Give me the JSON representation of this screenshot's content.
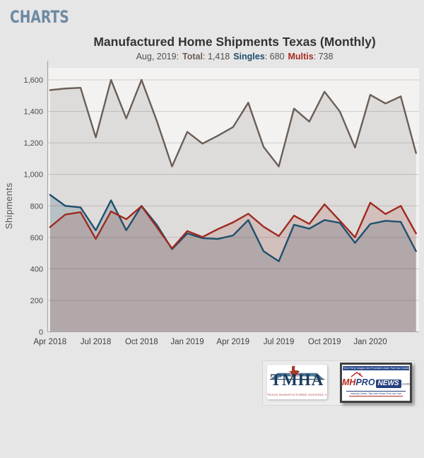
{
  "header": {
    "title": "CHARTS"
  },
  "subtitle": {
    "prefix": "Aug, 2019:",
    "separator": ": ",
    "items": [
      {
        "label": "Total",
        "value": "1,418",
        "color": "#6b5e56"
      },
      {
        "label": "Singles",
        "value": "680",
        "color": "#1c4e70"
      },
      {
        "label": "Multis",
        "value": "738",
        "color": "#a62b1f"
      }
    ]
  },
  "chart_data": {
    "type": "line",
    "title": "Manufactured Home Shipments Texas (Monthly)",
    "ylabel": "Shipments",
    "xlabel": "",
    "ylim": [
      0,
      1600
    ],
    "ytick_step": 200,
    "grid": true,
    "legend_position": "none",
    "plot_bg": "#f3f2f1",
    "x_tick_labels": [
      "Apr 2018",
      "Jul 2018",
      "Oct 2018",
      "Jan 2019",
      "Apr 2019",
      "Jul 2019",
      "Oct 2019",
      "Jan 2020"
    ],
    "x_tick_indices": [
      0,
      3,
      6,
      9,
      12,
      15,
      18,
      21
    ],
    "x": [
      "Apr 2018",
      "May 2018",
      "Jun 2018",
      "Jul 2018",
      "Aug 2018",
      "Sep 2018",
      "Oct 2018",
      "Nov 2018",
      "Dec 2018",
      "Jan 2019",
      "Feb 2019",
      "Mar 2019",
      "Apr 2019",
      "May 2019",
      "Jun 2019",
      "Jul 2019",
      "Aug 2019",
      "Sep 2019",
      "Oct 2019",
      "Nov 2019",
      "Dec 2019",
      "Jan 2020",
      "Feb 2020",
      "Mar 2020",
      "Apr 2020"
    ],
    "series": [
      {
        "name": "Total",
        "color": "#6b5e56",
        "values": [
          1535,
          1545,
          1550,
          1235,
          1600,
          1355,
          1600,
          1340,
          1050,
          1270,
          1195,
          1245,
          1300,
          1455,
          1175,
          1050,
          1418,
          1335,
          1525,
          1400,
          1170,
          1505,
          1450,
          1495,
          1135
        ]
      },
      {
        "name": "Singles",
        "color": "#1f506e",
        "values": [
          870,
          800,
          790,
          645,
          835,
          645,
          800,
          680,
          525,
          625,
          595,
          590,
          612,
          710,
          512,
          448,
          680,
          655,
          710,
          692,
          565,
          685,
          705,
          698,
          512
        ]
      },
      {
        "name": "Multis",
        "color": "#9e2a20",
        "values": [
          665,
          745,
          760,
          590,
          765,
          715,
          798,
          665,
          530,
          640,
          602,
          652,
          695,
          750,
          668,
          608,
          738,
          685,
          810,
          706,
          600,
          820,
          748,
          800,
          625
        ]
      }
    ],
    "highlighted_point": {
      "x": "Aug, 2019",
      "Total": "1,418",
      "Singles": "680",
      "Multis": "738"
    }
  },
  "logos": {
    "tmha": {
      "name": "TMHA",
      "tagline": "TEXAS MANUFACTURED HOUSING ASSOCIATION"
    },
    "mhpronews": {
      "disclaimer": "Third Party Images Are Provided Under Fair Use Guidelines",
      "mh": "MH",
      "pro": "PRO",
      "news": "NEWS",
      "dotcom": ".com",
      "tagline": "Industry News, Tips and Views Pros can Use"
    }
  }
}
